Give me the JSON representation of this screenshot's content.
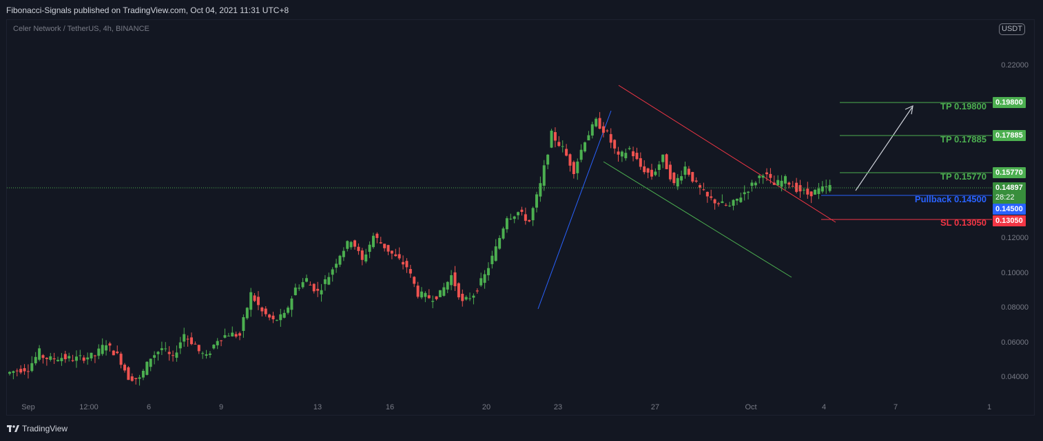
{
  "header": {
    "published_by": "Fibonacci-Signals published on TradingView.com, Oct 04, 2021 11:31 UTC+8"
  },
  "chart_header": {
    "symbol": "Celer Network / TetherUS, 4h, BINANCE",
    "currency_badge": "USDT"
  },
  "footer": {
    "brand": "TradingView"
  },
  "colors": {
    "background": "#131722",
    "candle_up": "#26a69a",
    "candle_green": "#4caf50",
    "candle_down": "#ef5350",
    "tp": "#4caf50",
    "pullback": "#2962ff",
    "sl": "#f23645",
    "axis_text": "#787b86",
    "current_price_line": "#4caf50"
  },
  "chart_data": {
    "type": "candlestick",
    "title": "",
    "xlabel": "",
    "ylabel": "",
    "ylim": [
      0.032,
      0.233
    ],
    "grid": false,
    "y_ticks": [
      "0.22000",
      "0.12000",
      "0.10000",
      "0.08000",
      "0.06000",
      "0.04000"
    ],
    "x_ticks": [
      "Sep",
      "12:00",
      "6",
      "9",
      "13",
      "16",
      "20",
      "23",
      "27",
      "Oct",
      "4",
      "7",
      "1"
    ],
    "x_range": [
      "Aug 31",
      "Oct 12"
    ],
    "series": [
      {
        "ohlc_anchor_points": [
          [
            0.046,
            0.048
          ],
          [
            0.048,
            0.049
          ],
          [
            0.049,
            0.058
          ],
          [
            0.056,
            0.054
          ],
          [
            0.054,
            0.055
          ],
          [
            0.055,
            0.054
          ],
          [
            0.054,
            0.055
          ],
          [
            0.055,
            0.056
          ],
          [
            0.056,
            0.063
          ],
          [
            0.062,
            0.056
          ],
          [
            0.057,
            0.044
          ],
          [
            0.044,
            0.043
          ],
          [
            0.043,
            0.055
          ],
          [
            0.055,
            0.06
          ],
          [
            0.06,
            0.054
          ],
          [
            0.055,
            0.068
          ],
          [
            0.067,
            0.062
          ],
          [
            0.06,
            0.055
          ],
          [
            0.055,
            0.065
          ],
          [
            0.065,
            0.068
          ],
          [
            0.068,
            0.067
          ],
          [
            0.068,
            0.09
          ],
          [
            0.09,
            0.08
          ],
          [
            0.08,
            0.075
          ],
          [
            0.075,
            0.078
          ],
          [
            0.078,
            0.093
          ],
          [
            0.093,
            0.098
          ],
          [
            0.097,
            0.091
          ],
          [
            0.091,
            0.1
          ],
          [
            0.1,
            0.112
          ],
          [
            0.112,
            0.12
          ],
          [
            0.121,
            0.108
          ],
          [
            0.108,
            0.122
          ],
          [
            0.122,
            0.116
          ],
          [
            0.116,
            0.11
          ],
          [
            0.11,
            0.105
          ],
          [
            0.105,
            0.09
          ],
          [
            0.09,
            0.088
          ],
          [
            0.087,
            0.09
          ],
          [
            0.09,
            0.1
          ],
          [
            0.1,
            0.085
          ],
          [
            0.085,
            0.09
          ],
          [
            0.09,
            0.1
          ],
          [
            0.1,
            0.115
          ],
          [
            0.115,
            0.133
          ],
          [
            0.132,
            0.135
          ],
          [
            0.135,
            0.13
          ],
          [
            0.13,
            0.15
          ],
          [
            0.15,
            0.178
          ],
          [
            0.178,
            0.17
          ],
          [
            0.17,
            0.158
          ],
          [
            0.158,
            0.175
          ],
          [
            0.175,
            0.185
          ],
          [
            0.185,
            0.178
          ],
          [
            0.178,
            0.165
          ],
          [
            0.165,
            0.17
          ],
          [
            0.17,
            0.16
          ],
          [
            0.16,
            0.155
          ],
          [
            0.155,
            0.165
          ],
          [
            0.165,
            0.15
          ],
          [
            0.15,
            0.16
          ],
          [
            0.16,
            0.15
          ],
          [
            0.15,
            0.143
          ],
          [
            0.143,
            0.14
          ],
          [
            0.14,
            0.138
          ],
          [
            0.138,
            0.144
          ],
          [
            0.144,
            0.15
          ],
          [
            0.15,
            0.157
          ],
          [
            0.157,
            0.15
          ],
          [
            0.15,
            0.153
          ],
          [
            0.153,
            0.148
          ],
          [
            0.148,
            0.145
          ],
          [
            0.145,
            0.147
          ],
          [
            0.147,
            0.149
          ]
        ]
      }
    ],
    "annotations": {
      "current_price": {
        "value": "0.14897",
        "countdown": "28:22"
      },
      "levels": [
        {
          "label": "TP 0.19800",
          "value": 0.198,
          "badge": "0.19800",
          "kind": "tp"
        },
        {
          "label": "TP 0.17885",
          "value": 0.17885,
          "badge": "0.17885",
          "kind": "tp"
        },
        {
          "label": "TP 0.15770",
          "value": 0.1577,
          "badge": "0.15770",
          "kind": "tp"
        },
        {
          "label": "Pullback 0.14500",
          "value": 0.145,
          "badge": "0.14500",
          "kind": "pullback"
        },
        {
          "label": "SL 0.13050",
          "value": 0.1305,
          "badge": "0.13050",
          "kind": "sl"
        }
      ]
    }
  }
}
